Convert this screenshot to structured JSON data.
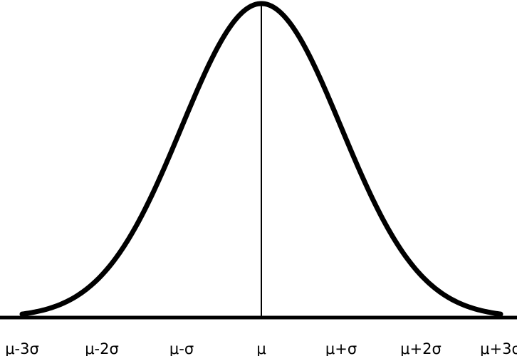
{
  "chart_data": {
    "type": "line",
    "title": "",
    "xlabel": "",
    "ylabel": "",
    "xlim": [
      -3.25,
      3.25
    ],
    "tick_positions": [
      -3,
      -2,
      -1,
      0,
      1,
      2,
      3
    ],
    "tick_labels": [
      "μ-3σ",
      "μ-2σ",
      "μ-σ",
      "μ",
      "μ+σ",
      "μ+2σ",
      "μ+3σ"
    ],
    "series": [
      {
        "x_range": [
          -3,
          3
        ],
        "function": "normal-pdf",
        "mean": 0,
        "std": 1
      }
    ],
    "mean_line_x": 0,
    "grid": false,
    "legend": "none",
    "colors": {
      "curve": "#000000",
      "axis": "#000000",
      "mean_line": "#000000",
      "background": "#ffffff"
    }
  }
}
